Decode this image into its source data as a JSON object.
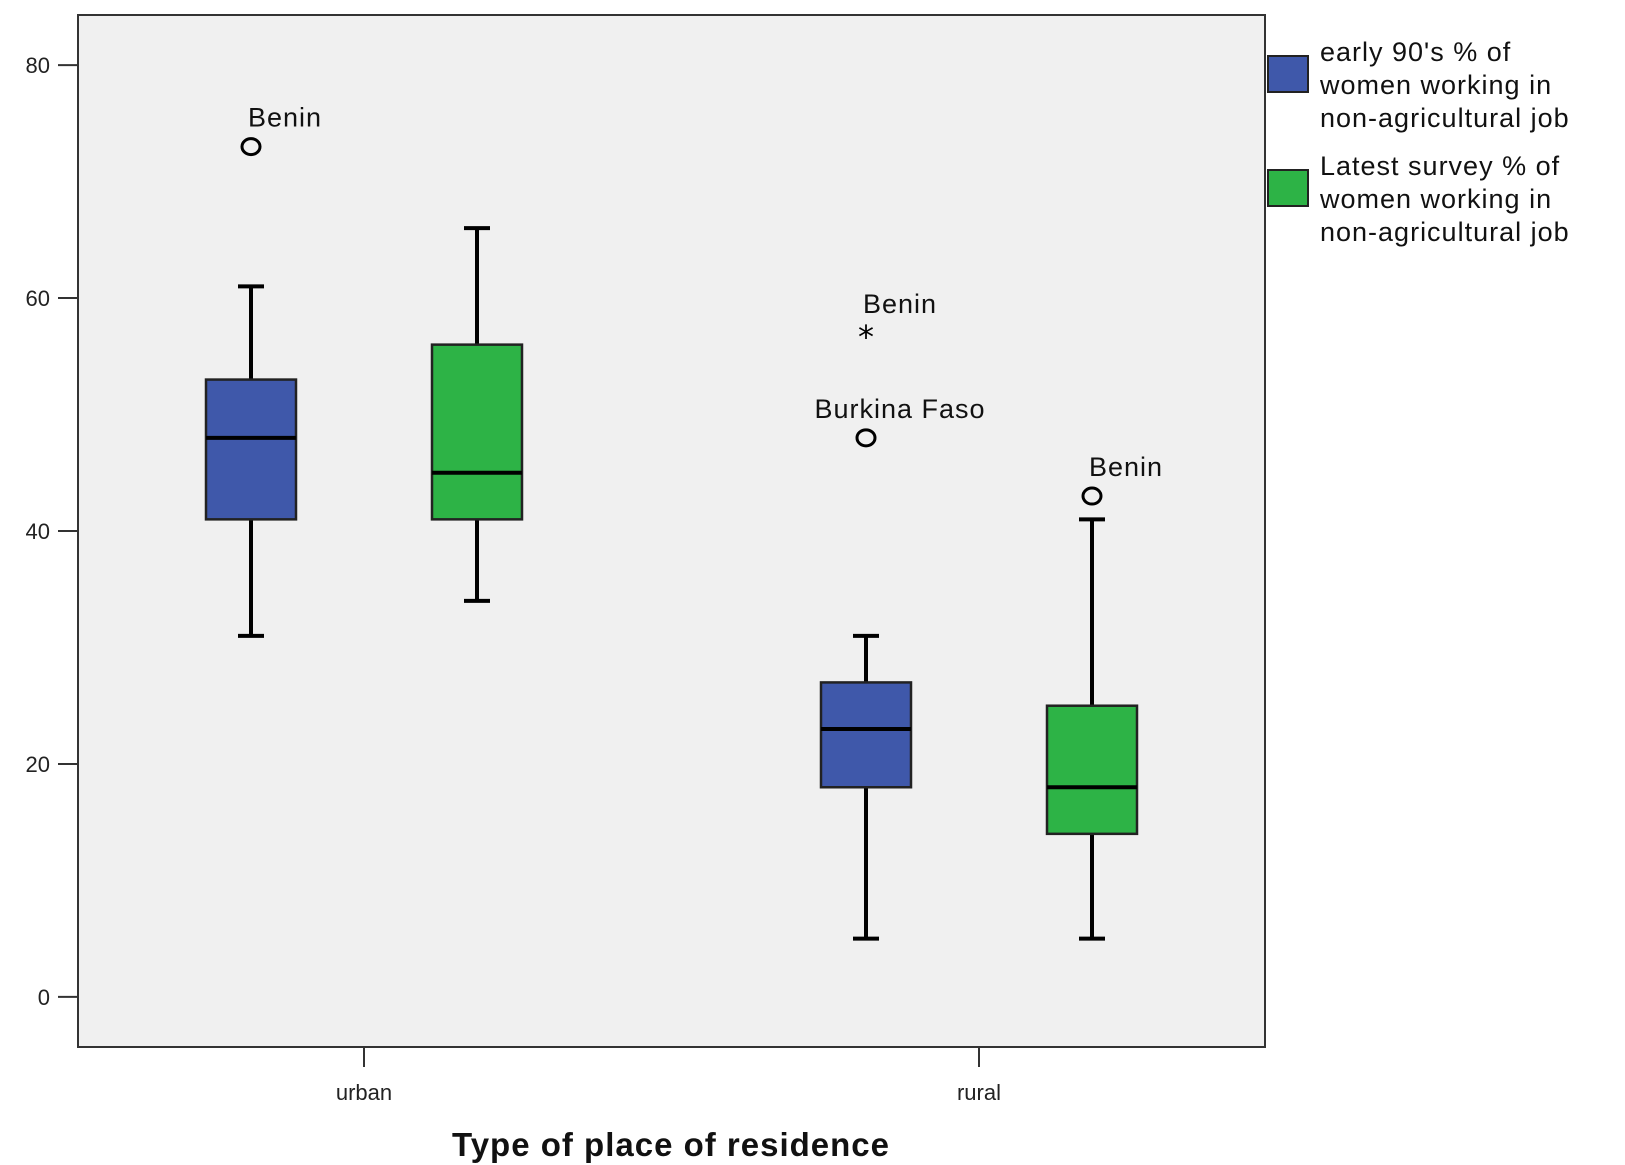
{
  "chart_data": {
    "type": "boxplot",
    "xlabel": "Type of place of residence",
    "ylabel": "",
    "categories": [
      "urban",
      "rural"
    ],
    "ylim": [
      -4.3,
      84.3
    ],
    "yticks": [
      0,
      20,
      40,
      60,
      80
    ],
    "grid": false,
    "legend_position": "right",
    "series": [
      {
        "name": "early 90's % of women working in non-agricultural job",
        "legend_lines": [
          "early 90's % of",
          "women working in",
          "non-agricultural job"
        ],
        "color": "#3f58aa",
        "boxes": [
          {
            "category": "urban",
            "whisker_low": 31,
            "q1": 41,
            "median": 48,
            "q3": 53,
            "whisker_high": 61,
            "outliers": [
              {
                "value": 73,
                "marker": "circle",
                "label": "Benin"
              }
            ]
          },
          {
            "category": "rural",
            "whisker_low": 5,
            "q1": 18,
            "median": 23,
            "q3": 27,
            "whisker_high": 31,
            "outliers": [
              {
                "value": 57,
                "marker": "star",
                "label": "Benin"
              },
              {
                "value": 48,
                "marker": "circle",
                "label": "Burkina Faso"
              }
            ]
          }
        ]
      },
      {
        "name": "Latest survey % of women working in non-agricultural job",
        "legend_lines": [
          "Latest survey % of",
          "women working in",
          "non-agricultural job"
        ],
        "color": "#2db346",
        "boxes": [
          {
            "category": "urban",
            "whisker_low": 34,
            "q1": 41,
            "median": 45,
            "q3": 56,
            "whisker_high": 66,
            "outliers": []
          },
          {
            "category": "rural",
            "whisker_low": 5,
            "q1": 14,
            "median": 18,
            "q3": 25,
            "whisker_high": 41,
            "outliers": [
              {
                "value": 43,
                "marker": "circle",
                "label": "Benin"
              }
            ]
          }
        ]
      }
    ]
  },
  "colors": {
    "plot_background": "#f0f0f0",
    "frame": "#333333"
  }
}
